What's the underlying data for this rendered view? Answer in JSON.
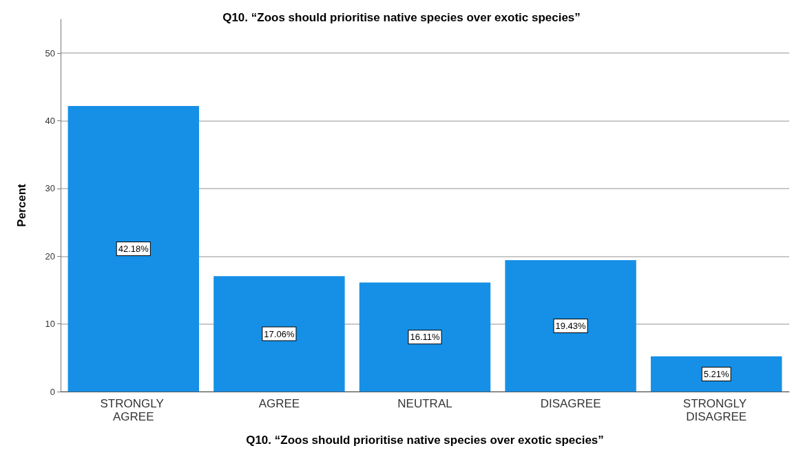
{
  "chart_data": {
    "type": "bar",
    "title": "Q10. “Zoos should prioritise native species over exotic species”",
    "xlabel": "Q10. “Zoos should prioritise native species over exotic species”",
    "ylabel": "Percent",
    "categories": [
      "STRONGLY AGREE",
      "AGREE",
      "NEUTRAL",
      "DISAGREE",
      "STRONGLY DISAGREE"
    ],
    "values": [
      42.18,
      17.06,
      16.11,
      19.43,
      5.21
    ],
    "value_labels": [
      "42.18%",
      "17.06%",
      "16.11%",
      "19.43%",
      "5.21%"
    ],
    "color": "#1690e6",
    "ylim": [
      0,
      55
    ],
    "yticks": [
      0,
      10,
      20,
      30,
      40,
      50
    ],
    "grid": "y"
  }
}
